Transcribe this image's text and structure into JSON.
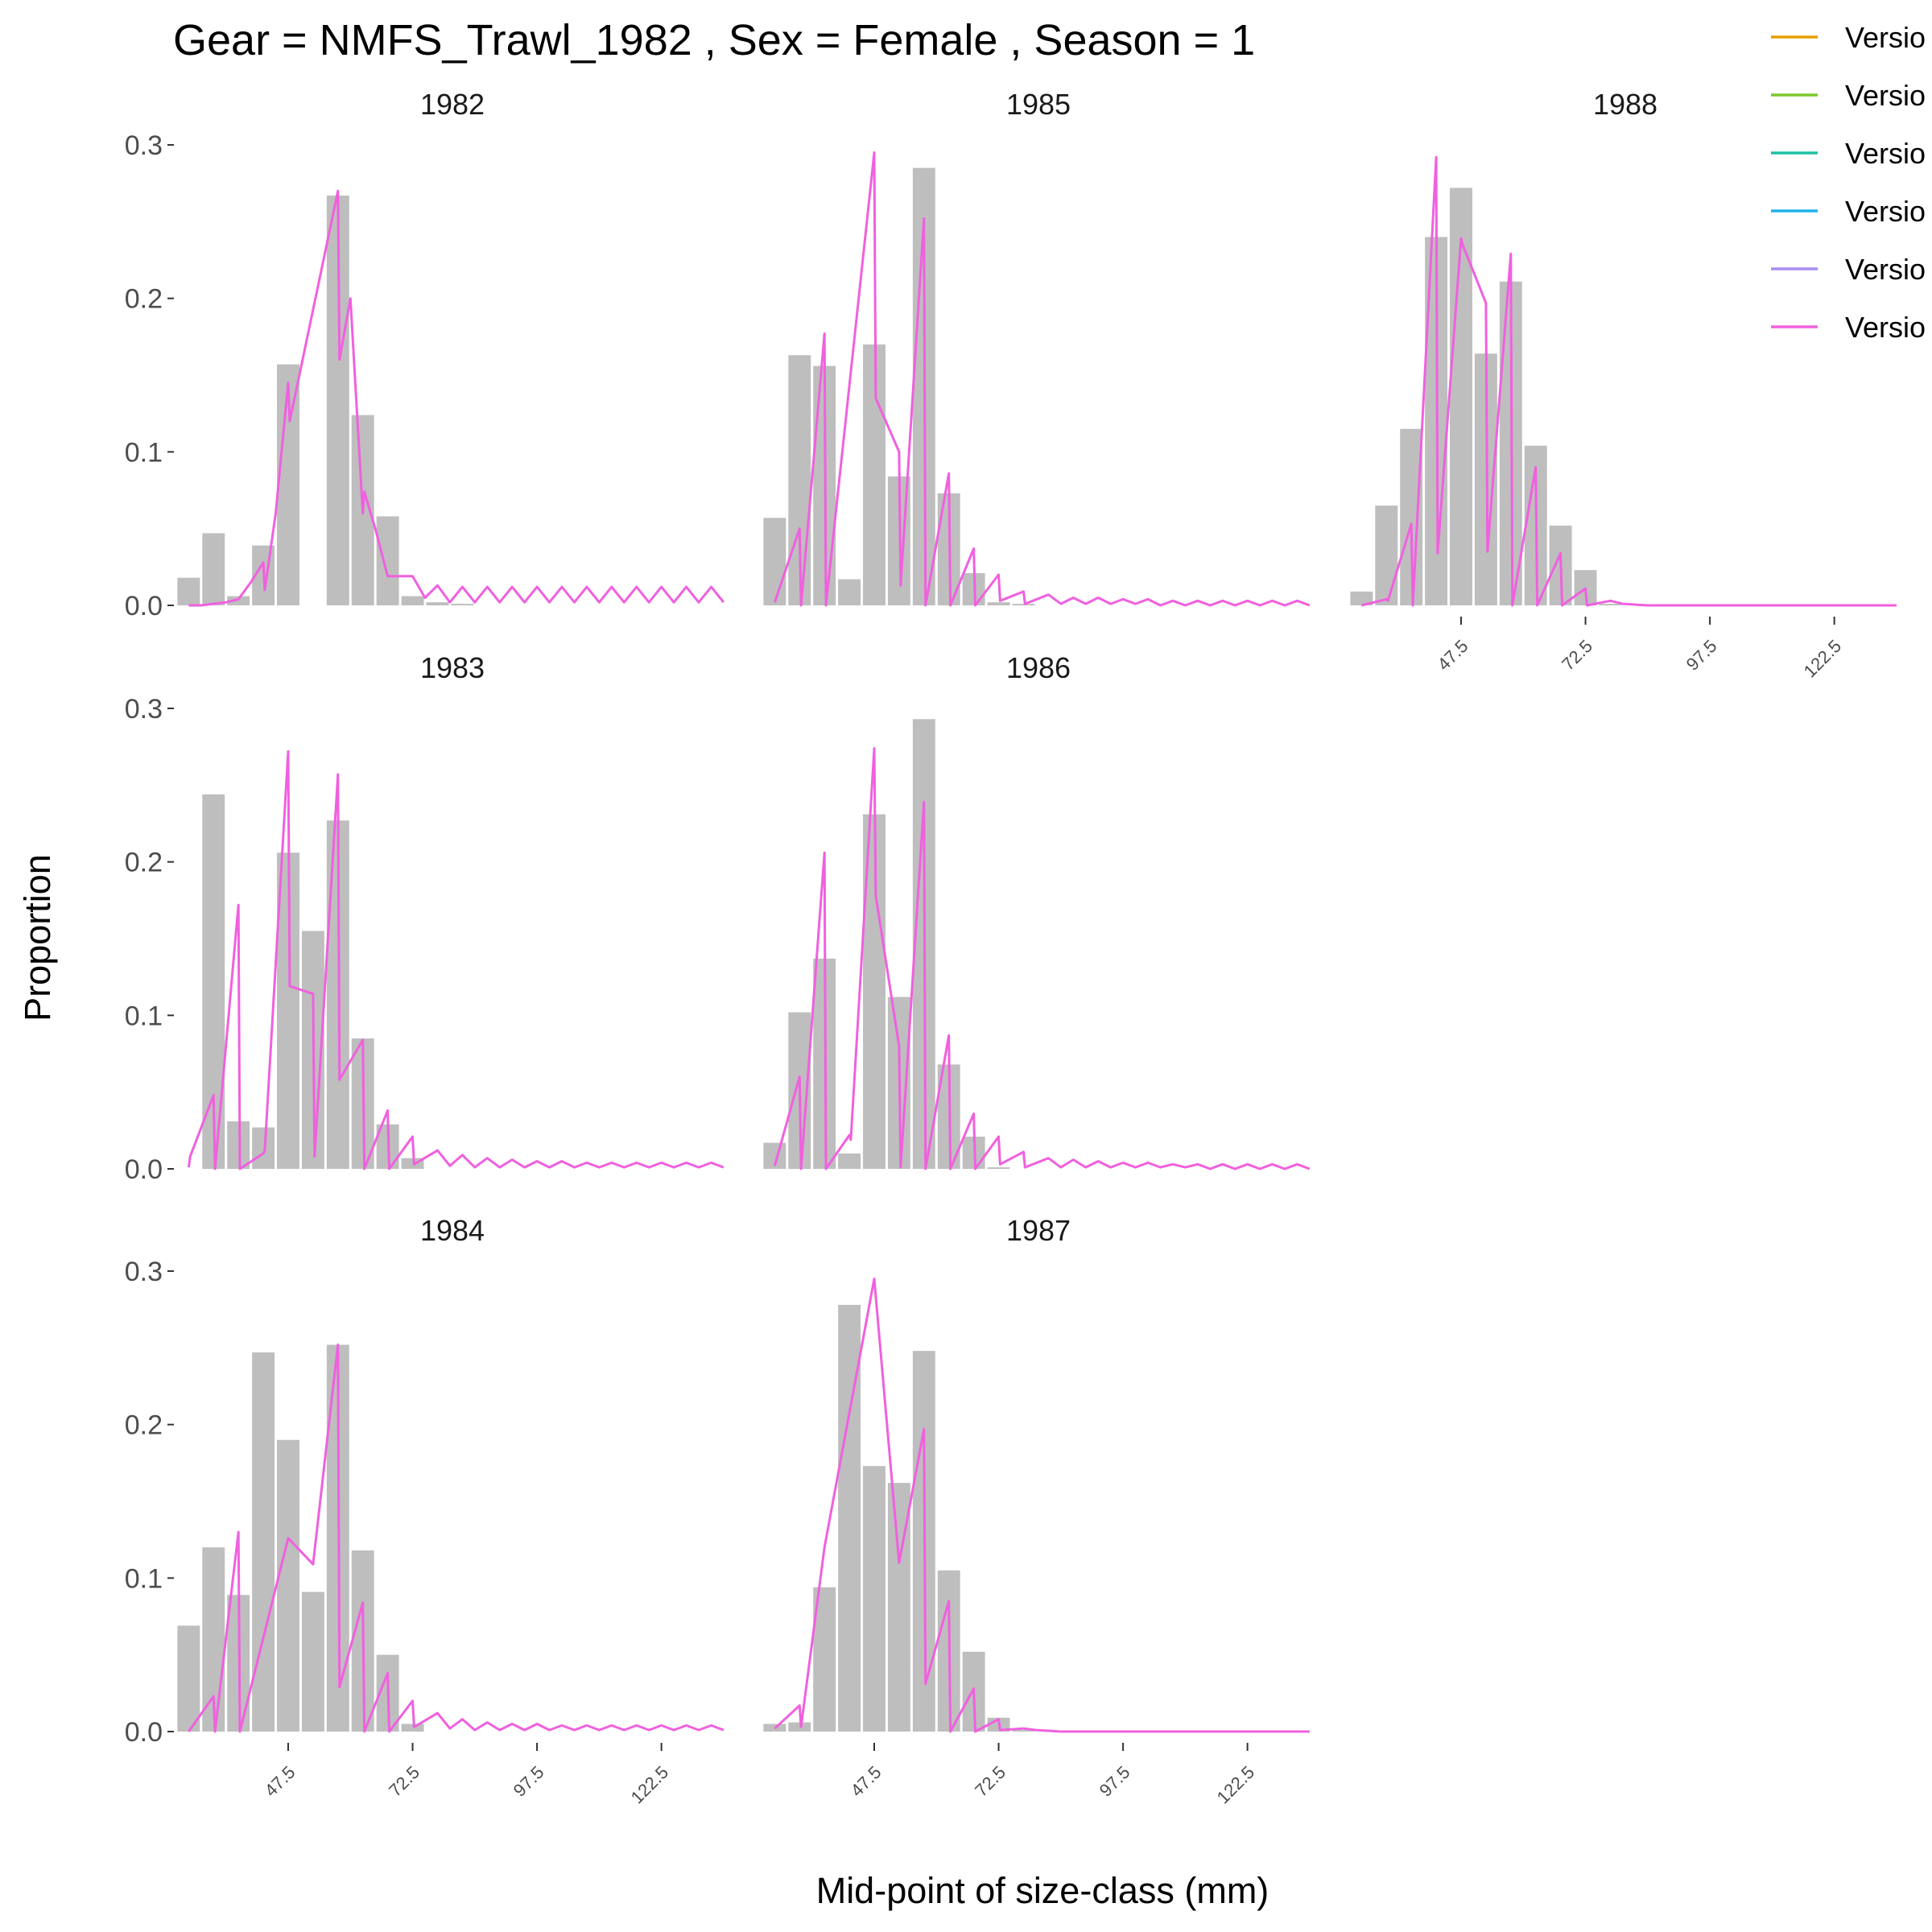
{
  "chart_data": {
    "type": "bar",
    "title": "Gear = NMFS_Trawl_1982 , Sex = Female , Season = 1",
    "xlabel": "Mid-point of size-class (mm)",
    "ylabel": "Proportion",
    "ylim": [
      0,
      0.3
    ],
    "yticks": [
      "0.0",
      "0.1",
      "0.2",
      "0.3"
    ],
    "xlim": [
      25.5,
      135.5
    ],
    "xticks": [
      "47.5",
      "72.5",
      "97.5",
      "122.5"
    ],
    "bin_width": 5,
    "grid": false,
    "legend_position": "top-right",
    "legend": [
      {
        "label": "Versio",
        "color": "#E69F00"
      },
      {
        "label": "Versio",
        "color": "#7CC82A"
      },
      {
        "label": "Versio",
        "color": "#1FC0A3"
      },
      {
        "label": "Versio",
        "color": "#1EB2E8"
      },
      {
        "label": "Versio",
        "color": "#A98BF2"
      },
      {
        "label": "Versio",
        "color": "#F060DF"
      }
    ],
    "bar_color": "#BEBEBE",
    "line_color": "#F060DF",
    "panels": [
      {
        "year": "1982",
        "bins": [
          27.5,
          32.5,
          37.5,
          42.5,
          47.5,
          57.5,
          62.5,
          67.5,
          72.5,
          77.5,
          82.5
        ],
        "observed": [
          0.018,
          0.047,
          0.006,
          0.039,
          0.157,
          0.267,
          0.124,
          0.058,
          0.006,
          0.002,
          0.001
        ],
        "predicted_x": [
          27.5,
          30,
          32.5,
          35,
          37.5,
          40,
          42.5,
          42.8,
          45,
          47.5,
          47.8,
          57.5,
          57.8,
          60,
          62.5,
          62.8,
          65,
          67.5,
          70,
          72.5,
          75,
          77.5,
          80,
          82.5,
          85,
          87.5,
          90,
          92.5,
          95,
          97.5,
          100,
          102.5,
          105,
          107.5,
          110,
          112.5,
          115,
          117.5,
          120,
          122.5,
          125,
          127.5,
          130,
          132.5,
          135
        ],
        "predicted_y": [
          0,
          0,
          0.001,
          0.002,
          0.004,
          0.015,
          0.028,
          0.01,
          0.06,
          0.145,
          0.12,
          0.27,
          0.16,
          0.2,
          0.06,
          0.074,
          0.05,
          0.019,
          0.019,
          0.019,
          0.005,
          0.013,
          0.002,
          0.012,
          0.002,
          0.012,
          0.002,
          0.012,
          0.002,
          0.012,
          0.002,
          0.012,
          0.002,
          0.012,
          0.002,
          0.012,
          0.002,
          0.012,
          0.002,
          0.012,
          0.002,
          0.012,
          0.002,
          0.012,
          0.002
        ]
      },
      {
        "year": "1985",
        "bins": [
          27.5,
          32.5,
          37.5,
          42.5,
          47.5,
          52.5,
          57.5,
          62.5,
          67.5,
          72.5,
          77.5
        ],
        "observed": [
          0.057,
          0.163,
          0.156,
          0.017,
          0.17,
          0.084,
          0.285,
          0.073,
          0.021,
          0.002,
          0.001
        ],
        "predicted_x": [
          27.5,
          32.5,
          32.8,
          37.5,
          37.8,
          47.5,
          47.8,
          52.5,
          52.8,
          57.5,
          57.8,
          62.5,
          62.8,
          67.5,
          67.8,
          72.5,
          72.8,
          77.5,
          77.8,
          82.5,
          85,
          87.5,
          90,
          92.5,
          95,
          97.5,
          100,
          102.5,
          105,
          107.5,
          110,
          112.5,
          115,
          117.5,
          120,
          122.5,
          125,
          127.5,
          130,
          132.5,
          135
        ],
        "predicted_y": [
          0.002,
          0.05,
          0.0,
          0.177,
          0.0,
          0.295,
          0.135,
          0.1,
          0.013,
          0.252,
          0.0,
          0.086,
          0.0,
          0.037,
          0.0,
          0.02,
          0.003,
          0.009,
          0.001,
          0.007,
          0.001,
          0.005,
          0.001,
          0.005,
          0.001,
          0.004,
          0.001,
          0.004,
          0.0,
          0.003,
          0.0,
          0.003,
          0.0,
          0.003,
          0.0,
          0.003,
          0.0,
          0.003,
          0.0,
          0.003,
          0.0
        ]
      },
      {
        "year": "1988",
        "bins": [
          27.5,
          32.5,
          37.5,
          42.5,
          47.5,
          52.5,
          57.5,
          62.5,
          67.5,
          72.5,
          77.5
        ],
        "observed": [
          0.009,
          0.065,
          0.115,
          0.24,
          0.272,
          0.164,
          0.211,
          0.104,
          0.052,
          0.023,
          0.001
        ],
        "predicted_x": [
          27.5,
          32.5,
          32.8,
          37.5,
          37.8,
          42.5,
          42.8,
          47.5,
          47.8,
          52.5,
          52.8,
          57.5,
          57.8,
          62.5,
          62.8,
          67.5,
          67.8,
          72.5,
          72.8,
          77.5,
          80,
          85,
          90,
          95,
          100,
          105,
          110,
          115,
          120,
          125,
          130,
          135
        ],
        "predicted_y": [
          0,
          0.004,
          0.003,
          0.053,
          0.0,
          0.292,
          0.034,
          0.239,
          0.235,
          0.197,
          0.035,
          0.229,
          0.0,
          0.09,
          0.0,
          0.034,
          0.0,
          0.011,
          0.0,
          0.003,
          0.001,
          0,
          0,
          0,
          0,
          0,
          0,
          0,
          0,
          0,
          0,
          0
        ]
      },
      {
        "year": "1983",
        "bins": [
          27.5,
          32.5,
          37.5,
          42.5,
          47.5,
          52.5,
          57.5,
          62.5,
          67.5,
          72.5
        ],
        "observed": [
          0.0,
          0.244,
          0.031,
          0.027,
          0.206,
          0.155,
          0.227,
          0.085,
          0.029,
          0.007
        ],
        "predicted_x": [
          27.5,
          27.8,
          32.5,
          32.8,
          37.5,
          37.8,
          42.5,
          42.8,
          47.5,
          47.8,
          52.5,
          52.8,
          57.5,
          57.8,
          62.5,
          62.8,
          67.5,
          67.8,
          72.5,
          72.8,
          77.5,
          80,
          82.5,
          85,
          87.5,
          90,
          92.5,
          95,
          97.5,
          100,
          102.5,
          105,
          107.5,
          110,
          112.5,
          115,
          117.5,
          120,
          122.5,
          125,
          127.5,
          130,
          132.5,
          135
        ],
        "predicted_y": [
          0.001,
          0.008,
          0.048,
          0.0,
          0.172,
          0.0,
          0.01,
          0.012,
          0.272,
          0.119,
          0.114,
          0.008,
          0.257,
          0.058,
          0.084,
          0.0,
          0.038,
          0.0,
          0.021,
          0.003,
          0.012,
          0.002,
          0.009,
          0.001,
          0.007,
          0.001,
          0.006,
          0.001,
          0.005,
          0.001,
          0.005,
          0.001,
          0.004,
          0.001,
          0.004,
          0.001,
          0.004,
          0.001,
          0.004,
          0.001,
          0.004,
          0.001,
          0.004,
          0.001
        ]
      },
      {
        "year": "1986",
        "bins": [
          27.5,
          32.5,
          37.5,
          42.5,
          47.5,
          52.5,
          57.5,
          62.5,
          67.5,
          72.5
        ],
        "observed": [
          0.017,
          0.102,
          0.137,
          0.01,
          0.231,
          0.112,
          0.293,
          0.068,
          0.021,
          0.001
        ],
        "predicted_x": [
          27.5,
          32.5,
          32.8,
          37.5,
          37.8,
          42.5,
          42.8,
          47.5,
          47.8,
          52.5,
          52.8,
          57.5,
          57.8,
          62.5,
          62.8,
          67.5,
          67.8,
          72.5,
          72.8,
          77.5,
          77.8,
          82.5,
          85,
          87.5,
          90,
          92.5,
          95,
          97.5,
          100,
          102.5,
          105,
          107.5,
          110,
          112.5,
          115,
          117.5,
          120,
          122.5,
          125,
          127.5,
          130,
          132.5,
          135
        ],
        "predicted_y": [
          0.002,
          0.06,
          0.0,
          0.206,
          0.0,
          0.022,
          0.019,
          0.274,
          0.178,
          0.08,
          0.001,
          0.239,
          0.0,
          0.087,
          0.0,
          0.036,
          0.0,
          0.021,
          0.003,
          0.011,
          0.001,
          0.007,
          0.001,
          0.006,
          0.001,
          0.005,
          0.001,
          0.004,
          0.001,
          0.004,
          0.001,
          0.003,
          0.001,
          0.003,
          0.0,
          0.003,
          0.0,
          0.003,
          0.0,
          0.003,
          0.0,
          0.003,
          0.0
        ]
      },
      {
        "year": "1984",
        "bins": [
          27.5,
          32.5,
          37.5,
          42.5,
          47.5,
          52.5,
          57.5,
          62.5,
          67.5,
          72.5
        ],
        "observed": [
          0.069,
          0.12,
          0.089,
          0.247,
          0.19,
          0.091,
          0.252,
          0.118,
          0.05,
          0.005
        ],
        "predicted_x": [
          27.5,
          32.5,
          32.8,
          37.5,
          37.8,
          47.5,
          52.5,
          57.5,
          57.8,
          62.5,
          62.8,
          67.5,
          67.8,
          72.5,
          72.8,
          77.5,
          80,
          82.5,
          85,
          87.5,
          90,
          92.5,
          95,
          97.5,
          100,
          102.5,
          105,
          107.5,
          110,
          112.5,
          115,
          117.5,
          120,
          122.5,
          125,
          127.5,
          130,
          132.5,
          135
        ],
        "predicted_y": [
          0.0,
          0.023,
          0.0,
          0.13,
          0.0,
          0.126,
          0.109,
          0.252,
          0.029,
          0.084,
          0.0,
          0.038,
          0.0,
          0.02,
          0.003,
          0.012,
          0.002,
          0.008,
          0.001,
          0.006,
          0.001,
          0.005,
          0.001,
          0.005,
          0.001,
          0.004,
          0.001,
          0.004,
          0.001,
          0.004,
          0.001,
          0.004,
          0.001,
          0.004,
          0.001,
          0.004,
          0.001,
          0.004,
          0.001
        ]
      },
      {
        "year": "1987",
        "bins": [
          27.5,
          32.5,
          37.5,
          42.5,
          47.5,
          52.5,
          57.5,
          62.5,
          67.5,
          72.5,
          77.5
        ],
        "observed": [
          0.005,
          0.006,
          0.094,
          0.278,
          0.173,
          0.162,
          0.248,
          0.105,
          0.052,
          0.009,
          0.001
        ],
        "predicted_x": [
          27.5,
          32.5,
          32.8,
          37.5,
          47.5,
          52.5,
          57.5,
          57.8,
          62.5,
          62.8,
          67.5,
          67.8,
          72.5,
          72.8,
          77.5,
          80,
          85,
          90,
          95,
          100,
          105,
          110,
          115,
          120,
          125,
          130,
          135
        ],
        "predicted_y": [
          0.002,
          0.017,
          0.003,
          0.12,
          0.295,
          0.11,
          0.197,
          0.031,
          0.085,
          0.0,
          0.028,
          0.0,
          0.008,
          0.001,
          0.002,
          0.001,
          0,
          0,
          0,
          0,
          0,
          0,
          0,
          0,
          0,
          0,
          0
        ]
      }
    ]
  }
}
